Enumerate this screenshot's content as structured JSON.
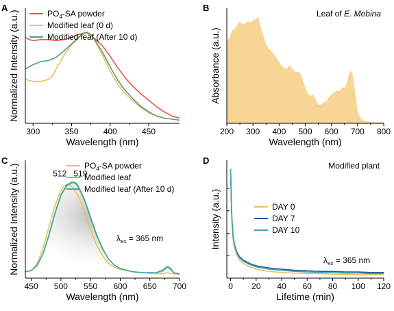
{
  "chart_data": [
    {
      "id": "A",
      "type": "line",
      "panel_label": "A",
      "xlabel": "Wavelength (nm)",
      "ylabel": "Normalized Intensity (a.u.)",
      "xlim": [
        290,
        490
      ],
      "ylim": [
        0,
        1.1
      ],
      "xticks": [
        300,
        350,
        400,
        450
      ],
      "ytick_labels": false,
      "legend_position": "top-left",
      "series": [
        {
          "name": "PO4-SA powder",
          "name_parts": [
            "PO",
            "4",
            "-SA powder"
          ],
          "color": "#e8574a",
          "x": [
            290,
            295,
            300,
            310,
            320,
            330,
            340,
            350,
            355,
            360,
            365,
            370,
            375,
            380,
            390,
            400,
            410,
            420,
            430,
            440,
            450,
            460,
            470,
            480,
            490
          ],
          "y": [
            0.82,
            0.8,
            0.79,
            0.8,
            0.8,
            0.79,
            0.8,
            0.82,
            0.84,
            0.85,
            0.86,
            0.86,
            0.84,
            0.81,
            0.74,
            0.64,
            0.53,
            0.43,
            0.35,
            0.28,
            0.22,
            0.16,
            0.11,
            0.07,
            0.05
          ]
        },
        {
          "name": "Modified leaf (0 d)",
          "color": "#f0be55",
          "x": [
            290,
            300,
            310,
            320,
            325,
            330,
            340,
            350,
            360,
            365,
            370,
            375,
            380,
            390,
            400,
            410,
            420,
            430,
            440,
            450,
            460,
            470,
            480,
            490
          ],
          "y": [
            0.42,
            0.4,
            0.4,
            0.42,
            0.45,
            0.52,
            0.65,
            0.75,
            0.82,
            0.85,
            0.86,
            0.84,
            0.79,
            0.65,
            0.5,
            0.37,
            0.28,
            0.21,
            0.15,
            0.1,
            0.07,
            0.05,
            0.04,
            0.03
          ]
        },
        {
          "name": "Modified leaf (After 10 d)",
          "color": "#4f9d86",
          "x": [
            290,
            300,
            310,
            320,
            330,
            340,
            350,
            360,
            365,
            370,
            375,
            380,
            390,
            400,
            410,
            420,
            430,
            440,
            450,
            460,
            470,
            480,
            490
          ],
          "y": [
            0.52,
            0.56,
            0.59,
            0.6,
            0.63,
            0.69,
            0.76,
            0.83,
            0.86,
            0.87,
            0.85,
            0.8,
            0.68,
            0.54,
            0.41,
            0.31,
            0.23,
            0.16,
            0.11,
            0.07,
            0.05,
            0.04,
            0.03
          ]
        }
      ]
    },
    {
      "id": "B",
      "type": "area",
      "panel_label": "B",
      "annotation": "Leaf of E. Mebina",
      "annotation_parts": [
        "Leaf of ",
        "E. Mebina"
      ],
      "xlabel": "Wavelength (nm)",
      "ylabel": "Absorbance (a.u.)",
      "xlim": [
        200,
        800
      ],
      "ylim": [
        0,
        1.05
      ],
      "xticks": [
        200,
        300,
        400,
        500,
        600,
        700,
        800
      ],
      "ytick_labels": false,
      "series": [
        {
          "name": "",
          "color": "#f7d594",
          "x": [
            200,
            210,
            220,
            230,
            240,
            250,
            260,
            270,
            280,
            290,
            300,
            310,
            320,
            330,
            340,
            350,
            360,
            370,
            380,
            390,
            400,
            410,
            420,
            430,
            440,
            450,
            460,
            470,
            480,
            490,
            500,
            510,
            520,
            530,
            540,
            550,
            560,
            570,
            580,
            590,
            600,
            610,
            620,
            630,
            640,
            650,
            660,
            670,
            680,
            690,
            700,
            710,
            720,
            730,
            740,
            750,
            760,
            770,
            780,
            790,
            800
          ],
          "y": [
            0.75,
            0.78,
            0.85,
            0.86,
            0.9,
            0.93,
            0.9,
            0.91,
            0.93,
            0.92,
            0.94,
            0.95,
            0.97,
            0.88,
            0.8,
            0.72,
            0.68,
            0.66,
            0.63,
            0.6,
            0.56,
            0.52,
            0.5,
            0.5,
            0.53,
            0.5,
            0.47,
            0.47,
            0.46,
            0.4,
            0.33,
            0.27,
            0.25,
            0.26,
            0.22,
            0.17,
            0.17,
            0.19,
            0.2,
            0.24,
            0.26,
            0.28,
            0.3,
            0.29,
            0.33,
            0.32,
            0.38,
            0.48,
            0.46,
            0.3,
            0.12,
            0.05,
            0.03,
            0.02,
            0.015,
            0.012,
            0.01,
            0.01,
            0.01,
            0.01,
            0.01
          ]
        }
      ]
    },
    {
      "id": "C",
      "type": "line",
      "panel_label": "C",
      "xlabel": "Wavelength (nm)",
      "ylabel": "Normalized Intensity (a.u.)",
      "xlim": [
        440,
        700
      ],
      "ylim": [
        0,
        1.1
      ],
      "xticks": [
        450,
        500,
        550,
        600,
        650,
        700
      ],
      "ytick_labels": false,
      "legend_position": "top-center",
      "peak_labels": [
        "512",
        "519"
      ],
      "excitation_label": [
        "λ",
        "ex",
        " = 365 nm"
      ],
      "series": [
        {
          "name": "PO4-SA powder",
          "name_parts": [
            "PO",
            "4",
            "-SA powder"
          ],
          "color": "#f0be55",
          "x": [
            440,
            450,
            460,
            470,
            480,
            490,
            500,
            505,
            512,
            520,
            530,
            540,
            550,
            560,
            570,
            580,
            590,
            600,
            620,
            640,
            660,
            670,
            680,
            690,
            700
          ],
          "y": [
            0.06,
            0.07,
            0.14,
            0.28,
            0.48,
            0.68,
            0.82,
            0.86,
            0.88,
            0.85,
            0.76,
            0.61,
            0.45,
            0.31,
            0.21,
            0.14,
            0.1,
            0.08,
            0.06,
            0.05,
            0.04,
            0.04,
            0.05,
            0.04,
            0.03
          ]
        },
        {
          "name": "Modified leaf",
          "color": "#8cc63f",
          "x": [
            440,
            450,
            460,
            470,
            480,
            490,
            500,
            510,
            519,
            525,
            530,
            540,
            550,
            560,
            570,
            580,
            590,
            600,
            620,
            640,
            660,
            670,
            675,
            680,
            685,
            690,
            700
          ],
          "y": [
            0.06,
            0.07,
            0.12,
            0.23,
            0.4,
            0.6,
            0.77,
            0.86,
            0.89,
            0.88,
            0.84,
            0.72,
            0.56,
            0.4,
            0.27,
            0.18,
            0.12,
            0.09,
            0.06,
            0.05,
            0.05,
            0.06,
            0.08,
            0.1,
            0.08,
            0.05,
            0.04
          ]
        },
        {
          "name": "Modified leaf (After 10 d)",
          "color": "#3aa4b8",
          "x": [
            440,
            450,
            460,
            470,
            480,
            490,
            500,
            510,
            519,
            525,
            530,
            540,
            550,
            560,
            570,
            580,
            590,
            600,
            620,
            640,
            660,
            670,
            675,
            680,
            685,
            690,
            700
          ],
          "y": [
            0.06,
            0.07,
            0.12,
            0.23,
            0.41,
            0.61,
            0.78,
            0.87,
            0.9,
            0.89,
            0.85,
            0.73,
            0.57,
            0.41,
            0.28,
            0.18,
            0.12,
            0.09,
            0.06,
            0.05,
            0.05,
            0.07,
            0.09,
            0.11,
            0.09,
            0.05,
            0.04
          ]
        }
      ]
    },
    {
      "id": "D",
      "type": "line",
      "panel_label": "D",
      "annotation": "Modified plant",
      "xlabel": "Lifetime (min)",
      "ylabel": "Intensity (a.u.)",
      "xlim": [
        -3,
        120
      ],
      "ylim": [
        0,
        1.05
      ],
      "xticks": [
        0,
        20,
        40,
        60,
        80,
        100,
        120
      ],
      "ytick_labels": false,
      "legend_position": "center",
      "excitation_label": [
        "λ",
        "ex",
        " = 365 nm"
      ],
      "series": [
        {
          "name": "DAY 0",
          "color": "#f0be55",
          "x": [
            0,
            0.5,
            1,
            2,
            3,
            5,
            7,
            10,
            15,
            20,
            30,
            40,
            50,
            60,
            70,
            80,
            90,
            100,
            110,
            120
          ],
          "y": [
            0.97,
            0.7,
            0.5,
            0.34,
            0.27,
            0.2,
            0.16,
            0.13,
            0.1,
            0.08,
            0.06,
            0.05,
            0.045,
            0.04,
            0.04,
            0.035,
            0.035,
            0.03,
            0.03,
            0.03
          ]
        },
        {
          "name": "DAY 7",
          "color": "#1f5aa0",
          "x": [
            0,
            0.5,
            1,
            2,
            3,
            5,
            7,
            10,
            15,
            20,
            30,
            40,
            50,
            60,
            70,
            80,
            90,
            100,
            110,
            120
          ],
          "y": [
            0.97,
            0.72,
            0.53,
            0.37,
            0.3,
            0.23,
            0.19,
            0.16,
            0.13,
            0.11,
            0.09,
            0.08,
            0.07,
            0.065,
            0.06,
            0.06,
            0.055,
            0.055,
            0.05,
            0.05
          ]
        },
        {
          "name": "DAY 10",
          "color": "#3aa4b8",
          "x": [
            0,
            0.5,
            1,
            2,
            3,
            5,
            7,
            10,
            15,
            20,
            30,
            40,
            50,
            60,
            70,
            80,
            90,
            100,
            110,
            120
          ],
          "y": [
            0.97,
            0.71,
            0.52,
            0.36,
            0.29,
            0.22,
            0.18,
            0.15,
            0.12,
            0.1,
            0.08,
            0.07,
            0.06,
            0.055,
            0.05,
            0.05,
            0.045,
            0.045,
            0.04,
            0.04
          ]
        }
      ]
    }
  ]
}
